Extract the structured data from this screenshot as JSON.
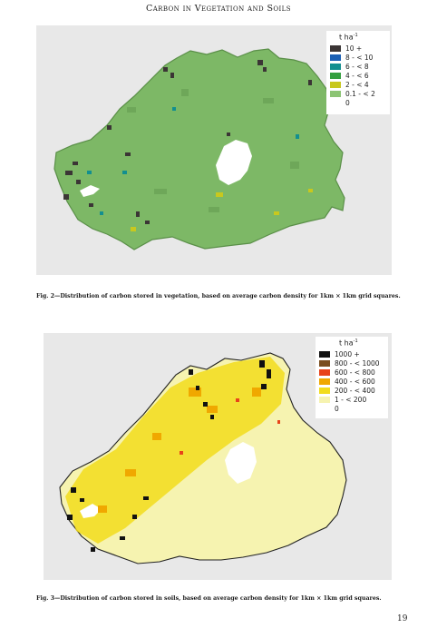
{
  "header": "Carbon in Vegetation and Soils",
  "figure2": {
    "legend_title": "t ha",
    "legend_sup": "-1",
    "items": [
      {
        "label": "10 +",
        "color": "#3b3535"
      },
      {
        "label": "8 - < 10",
        "color": "#1a5fb4"
      },
      {
        "label": "6 - < 8",
        "color": "#138f8f"
      },
      {
        "label": "4 - < 6",
        "color": "#35a040"
      },
      {
        "label": "2 - < 4",
        "color": "#c8c81e"
      },
      {
        "label": "0.1 - < 2",
        "color": "#8cc474"
      },
      {
        "label": "0",
        "color": "#ffffff"
      }
    ],
    "caption": "Fig. 2—Distribution of carbon stored in vegetation, based on average carbon density for 1km × 1km grid squares."
  },
  "figure3": {
    "legend_title": "t ha",
    "legend_sup": "-1",
    "items": [
      {
        "label": "1000 +",
        "color": "#111111"
      },
      {
        "label": "800 - < 1000",
        "color": "#7a4e20"
      },
      {
        "label": "600 - < 800",
        "color": "#e8431a"
      },
      {
        "label": "400 - < 600",
        "color": "#f0a800"
      },
      {
        "label": "200 - < 400",
        "color": "#f2dc1c"
      },
      {
        "label": "1 - < 200",
        "color": "#f6f3b0"
      },
      {
        "label": "0",
        "color": "#ffffff"
      }
    ],
    "caption": "Fig. 3—Distribution of carbon stored in soils, based on average carbon density for 1km × 1km grid squares."
  },
  "page_number": "19"
}
